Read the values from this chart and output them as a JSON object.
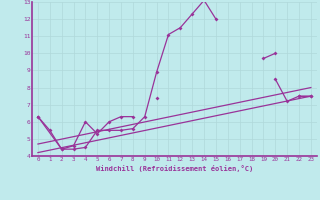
{
  "bg_color": "#c0eaec",
  "grid_color": "#b0d8da",
  "line_color": "#993399",
  "xlabel": "Windchill (Refroidissement éolien,°C)",
  "xlim": [
    -0.5,
    23.5
  ],
  "ylim": [
    4,
    13
  ],
  "yticks": [
    4,
    5,
    6,
    7,
    8,
    9,
    10,
    11,
    12,
    13
  ],
  "xticks": [
    0,
    1,
    2,
    3,
    4,
    5,
    6,
    7,
    8,
    9,
    10,
    11,
    12,
    13,
    14,
    15,
    16,
    17,
    18,
    19,
    20,
    21,
    22,
    23
  ],
  "line1_segments": [
    {
      "x": [
        0,
        1,
        2,
        3,
        4,
        5,
        6,
        7,
        8,
        9,
        10,
        11,
        12,
        13,
        14,
        15
      ],
      "y": [
        6.3,
        5.5,
        4.4,
        4.4,
        4.5,
        5.5,
        5.5,
        5.5,
        5.6,
        6.3,
        8.9,
        11.1,
        11.5,
        12.3,
        13.1,
        12.0
      ]
    },
    {
      "x": [
        19,
        20
      ],
      "y": [
        9.7,
        10.0
      ]
    },
    {
      "x": [
        22,
        23
      ],
      "y": [
        7.5,
        7.5
      ]
    }
  ],
  "line2_segments": [
    {
      "x": [
        0,
        2,
        3,
        4,
        5,
        6,
        7,
        8
      ],
      "y": [
        6.3,
        4.4,
        4.6,
        6.0,
        5.3,
        6.0,
        6.3,
        6.3
      ]
    },
    {
      "x": [
        10
      ],
      "y": [
        7.4
      ]
    },
    {
      "x": [
        20,
        21,
        22,
        23
      ],
      "y": [
        8.5,
        7.2,
        7.5,
        7.5
      ]
    }
  ],
  "straight_line1": {
    "x": [
      0,
      23
    ],
    "y": [
      4.2,
      7.5
    ]
  },
  "straight_line2": {
    "x": [
      0,
      23
    ],
    "y": [
      4.7,
      8.0
    ]
  }
}
